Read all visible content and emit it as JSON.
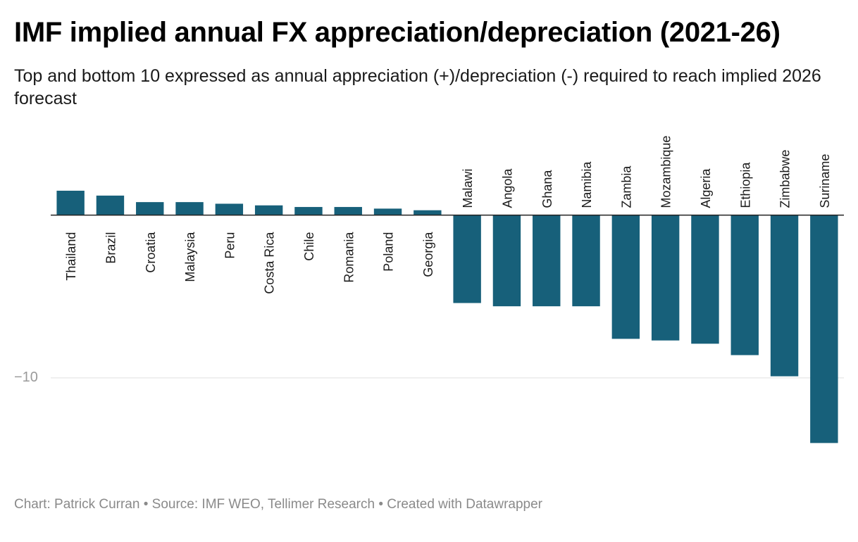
{
  "title": "IMF implied annual FX appreciation/depreciation (2021-26)",
  "subtitle": "Top and bottom 10 expressed as annual appreciation (+)/depreciation (-) required to reach implied 2026 forecast",
  "footer": {
    "credit": "Chart: Patrick Curran",
    "separator": "•",
    "source": "Source: IMF WEO, Tellimer Research",
    "tool": "Created with Datawrapper"
  },
  "colors": {
    "bar": "#17607a",
    "grid": "#e0e0e0",
    "baseline": "#222222",
    "tick": "#9a9a9a"
  },
  "chart_data": {
    "type": "bar",
    "title": "IMF implied annual FX appreciation/depreciation (2021-26)",
    "xlabel": "",
    "ylabel": "",
    "ylim": [
      -14.2,
      1.8
    ],
    "yticks": [
      {
        "value": -10,
        "label": "−10"
      }
    ],
    "grid": true,
    "categories": [
      "Thailand",
      "Brazil",
      "Croatia",
      "Malaysia",
      "Peru",
      "Costa Rica",
      "Chile",
      "Romania",
      "Poland",
      "Georgia",
      "Malawi",
      "Angola",
      "Ghana",
      "Namibia",
      "Zambia",
      "Mozambique",
      "Algeria",
      "Ethiopia",
      "Zimbabwe",
      "Suriname"
    ],
    "values": [
      1.5,
      1.2,
      0.8,
      0.8,
      0.7,
      0.6,
      0.5,
      0.5,
      0.4,
      0.3,
      -5.4,
      -5.6,
      -5.6,
      -5.6,
      -7.6,
      -7.7,
      -7.9,
      -8.6,
      -9.9,
      -14.0
    ]
  }
}
